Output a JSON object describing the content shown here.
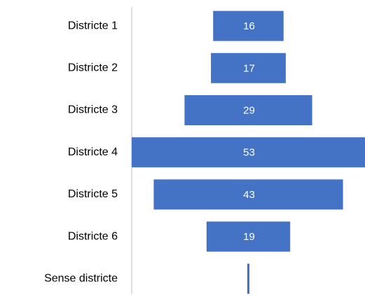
{
  "chart_data": {
    "type": "funnel",
    "categories": [
      "Districte 1",
      "Districte 2",
      "Districte 3",
      "Districte 4",
      "Districte 5",
      "Districte 6",
      "Sense districte"
    ],
    "values": [
      16,
      17,
      29,
      53,
      43,
      19,
      0.5
    ],
    "value_labels": [
      "16",
      "17",
      "29",
      "53",
      "43",
      "19",
      null
    ],
    "color": "#4472c4"
  }
}
